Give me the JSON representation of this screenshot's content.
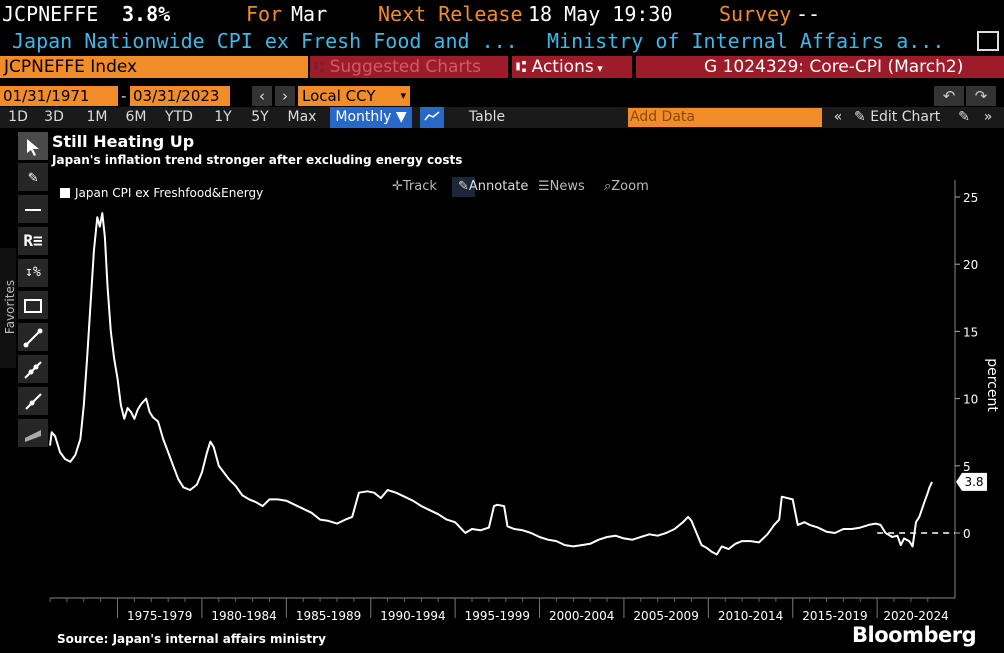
{
  "header": {
    "ticker": "JCPNEFFE",
    "value": "3.8%",
    "for_label": "For",
    "for_value": "Mar",
    "next_label": "Next Release",
    "next_value": "18 May 19:30",
    "survey_label": "Survey",
    "survey_value": "--",
    "name": "Japan Nationwide CPI ex Fresh Food and ...",
    "source_name": "Ministry of Internal Affairs a..."
  },
  "security_bar": {
    "index": "JCPNEFFE Index",
    "suggested": "Suggested Charts",
    "actions": "Actions",
    "chart_id": "G 1024329: Core-CPI (March2)"
  },
  "range_bar": {
    "start": "01/31/1971",
    "end": "03/31/2023",
    "currency": "Local CCY"
  },
  "period_bar": {
    "periods": [
      "1D",
      "3D",
      "1M",
      "6M",
      "YTD",
      "1Y",
      "5Y",
      "Max"
    ],
    "frequency": "Monthly",
    "table": "Table",
    "add_data": "Add Data",
    "edit_chart": "Edit Chart"
  },
  "sidebar": {
    "favorites": "Favorites"
  },
  "chart_tools": {
    "track": "Track",
    "annotate": "Annotate",
    "news": "News",
    "zoom": "Zoom"
  },
  "colors": {
    "accent_orange": "#f28c28",
    "header_cyan": "#3fb8e8",
    "maroon": "#9e1b2a",
    "series": "#ffffff"
  },
  "chart_data": {
    "type": "line",
    "title": "Still Heating Up",
    "subtitle": "Japan's inflation trend stronger after excluding energy costs",
    "ylabel": "percent",
    "ylim": [
      -5,
      26
    ],
    "yticks": [
      0,
      5,
      10,
      15,
      20,
      25
    ],
    "x_range": [
      1971.0,
      2023.25
    ],
    "x_categories": [
      "1975-1979",
      "1980-1984",
      "1985-1989",
      "1990-1994",
      "1995-1999",
      "2000-2004",
      "2005-2009",
      "2010-2014",
      "2015-2019",
      "2020-2024"
    ],
    "grid": false,
    "legend_position": "top-left",
    "last_value_label": "3.8",
    "zero_reference_line": true,
    "series": [
      {
        "name": "Japan CPI ex Freshfood&Energy",
        "points": [
          [
            1971.0,
            6.5
          ],
          [
            1971.1,
            7.5
          ],
          [
            1971.3,
            7.2
          ],
          [
            1971.6,
            6.0
          ],
          [
            1971.9,
            5.5
          ],
          [
            1972.2,
            5.3
          ],
          [
            1972.5,
            5.8
          ],
          [
            1972.8,
            7.0
          ],
          [
            1973.0,
            9.5
          ],
          [
            1973.2,
            13.0
          ],
          [
            1973.4,
            17.0
          ],
          [
            1973.6,
            21.0
          ],
          [
            1973.8,
            23.5
          ],
          [
            1973.95,
            22.8
          ],
          [
            1974.1,
            23.8
          ],
          [
            1974.25,
            22.0
          ],
          [
            1974.4,
            18.5
          ],
          [
            1974.6,
            15.0
          ],
          [
            1974.8,
            13.0
          ],
          [
            1975.0,
            11.5
          ],
          [
            1975.2,
            9.5
          ],
          [
            1975.4,
            8.5
          ],
          [
            1975.6,
            9.3
          ],
          [
            1975.8,
            9.0
          ],
          [
            1976.0,
            8.5
          ],
          [
            1976.2,
            9.2
          ],
          [
            1976.4,
            9.6
          ],
          [
            1976.7,
            10.0
          ],
          [
            1976.9,
            9.0
          ],
          [
            1977.1,
            8.6
          ],
          [
            1977.4,
            8.3
          ],
          [
            1977.7,
            7.0
          ],
          [
            1978.0,
            6.0
          ],
          [
            1978.3,
            5.0
          ],
          [
            1978.6,
            4.0
          ],
          [
            1978.9,
            3.4
          ],
          [
            1979.3,
            3.2
          ],
          [
            1979.7,
            3.6
          ],
          [
            1980.0,
            4.5
          ],
          [
            1980.3,
            6.0
          ],
          [
            1980.5,
            6.8
          ],
          [
            1980.7,
            6.4
          ],
          [
            1981.0,
            5.0
          ],
          [
            1981.3,
            4.5
          ],
          [
            1981.6,
            4.0
          ],
          [
            1982.0,
            3.5
          ],
          [
            1982.4,
            2.8
          ],
          [
            1982.8,
            2.5
          ],
          [
            1983.2,
            2.3
          ],
          [
            1983.6,
            2.0
          ],
          [
            1984.0,
            2.5
          ],
          [
            1984.5,
            2.5
          ],
          [
            1985.0,
            2.4
          ],
          [
            1985.5,
            2.1
          ],
          [
            1986.0,
            1.8
          ],
          [
            1986.5,
            1.5
          ],
          [
            1987.0,
            1.0
          ],
          [
            1987.5,
            0.9
          ],
          [
            1988.0,
            0.7
          ],
          [
            1988.5,
            1.0
          ],
          [
            1988.9,
            1.2
          ],
          [
            1989.3,
            3.0
          ],
          [
            1989.8,
            3.1
          ],
          [
            1990.2,
            3.0
          ],
          [
            1990.6,
            2.6
          ],
          [
            1991.0,
            3.2
          ],
          [
            1991.5,
            3.0
          ],
          [
            1992.0,
            2.7
          ],
          [
            1992.5,
            2.4
          ],
          [
            1993.0,
            2.0
          ],
          [
            1993.5,
            1.7
          ],
          [
            1994.0,
            1.4
          ],
          [
            1994.5,
            1.0
          ],
          [
            1995.0,
            0.8
          ],
          [
            1995.3,
            0.4
          ],
          [
            1995.6,
            0.0
          ],
          [
            1996.0,
            0.3
          ],
          [
            1996.5,
            0.2
          ],
          [
            1997.0,
            0.4
          ],
          [
            1997.3,
            2.0
          ],
          [
            1997.5,
            2.1
          ],
          [
            1997.9,
            2.0
          ],
          [
            1998.1,
            0.5
          ],
          [
            1998.5,
            0.3
          ],
          [
            1999.0,
            0.2
          ],
          [
            1999.5,
            0.0
          ],
          [
            2000.0,
            -0.3
          ],
          [
            2000.5,
            -0.5
          ],
          [
            2001.0,
            -0.6
          ],
          [
            2001.5,
            -0.9
          ],
          [
            2002.0,
            -1.0
          ],
          [
            2002.5,
            -0.9
          ],
          [
            2003.0,
            -0.8
          ],
          [
            2003.5,
            -0.5
          ],
          [
            2004.0,
            -0.3
          ],
          [
            2004.5,
            -0.2
          ],
          [
            2005.0,
            -0.4
          ],
          [
            2005.5,
            -0.5
          ],
          [
            2006.0,
            -0.3
          ],
          [
            2006.5,
            -0.1
          ],
          [
            2007.0,
            -0.2
          ],
          [
            2007.5,
            0.0
          ],
          [
            2008.0,
            0.3
          ],
          [
            2008.5,
            0.8
          ],
          [
            2008.8,
            1.2
          ],
          [
            2009.0,
            0.9
          ],
          [
            2009.3,
            0.0
          ],
          [
            2009.6,
            -0.9
          ],
          [
            2009.9,
            -1.1
          ],
          [
            2010.2,
            -1.4
          ],
          [
            2010.5,
            -1.6
          ],
          [
            2010.8,
            -1.0
          ],
          [
            2011.2,
            -1.2
          ],
          [
            2011.6,
            -0.8
          ],
          [
            2012.0,
            -0.6
          ],
          [
            2012.5,
            -0.6
          ],
          [
            2013.0,
            -0.7
          ],
          [
            2013.5,
            -0.1
          ],
          [
            2013.9,
            0.6
          ],
          [
            2014.2,
            1.0
          ],
          [
            2014.35,
            2.7
          ],
          [
            2014.7,
            2.6
          ],
          [
            2015.0,
            2.5
          ],
          [
            2015.3,
            0.6
          ],
          [
            2015.7,
            0.8
          ],
          [
            2016.0,
            0.6
          ],
          [
            2016.5,
            0.4
          ],
          [
            2017.0,
            0.1
          ],
          [
            2017.5,
            0.0
          ],
          [
            2018.0,
            0.3
          ],
          [
            2018.5,
            0.3
          ],
          [
            2019.0,
            0.4
          ],
          [
            2019.5,
            0.6
          ],
          [
            2019.9,
            0.7
          ],
          [
            2020.2,
            0.6
          ],
          [
            2020.5,
            0.0
          ],
          [
            2020.9,
            -0.3
          ],
          [
            2021.2,
            -0.2
          ],
          [
            2021.4,
            -0.9
          ],
          [
            2021.6,
            -0.4
          ],
          [
            2021.9,
            -0.6
          ],
          [
            2022.1,
            -1.0
          ],
          [
            2022.3,
            0.8
          ],
          [
            2022.5,
            1.2
          ],
          [
            2022.8,
            2.3
          ],
          [
            2023.0,
            3.0
          ],
          [
            2023.1,
            3.4
          ],
          [
            2023.25,
            3.8
          ]
        ]
      }
    ]
  },
  "footer": {
    "source": "Source: Japan's internal affairs ministry",
    "brand": "Bloomberg"
  }
}
